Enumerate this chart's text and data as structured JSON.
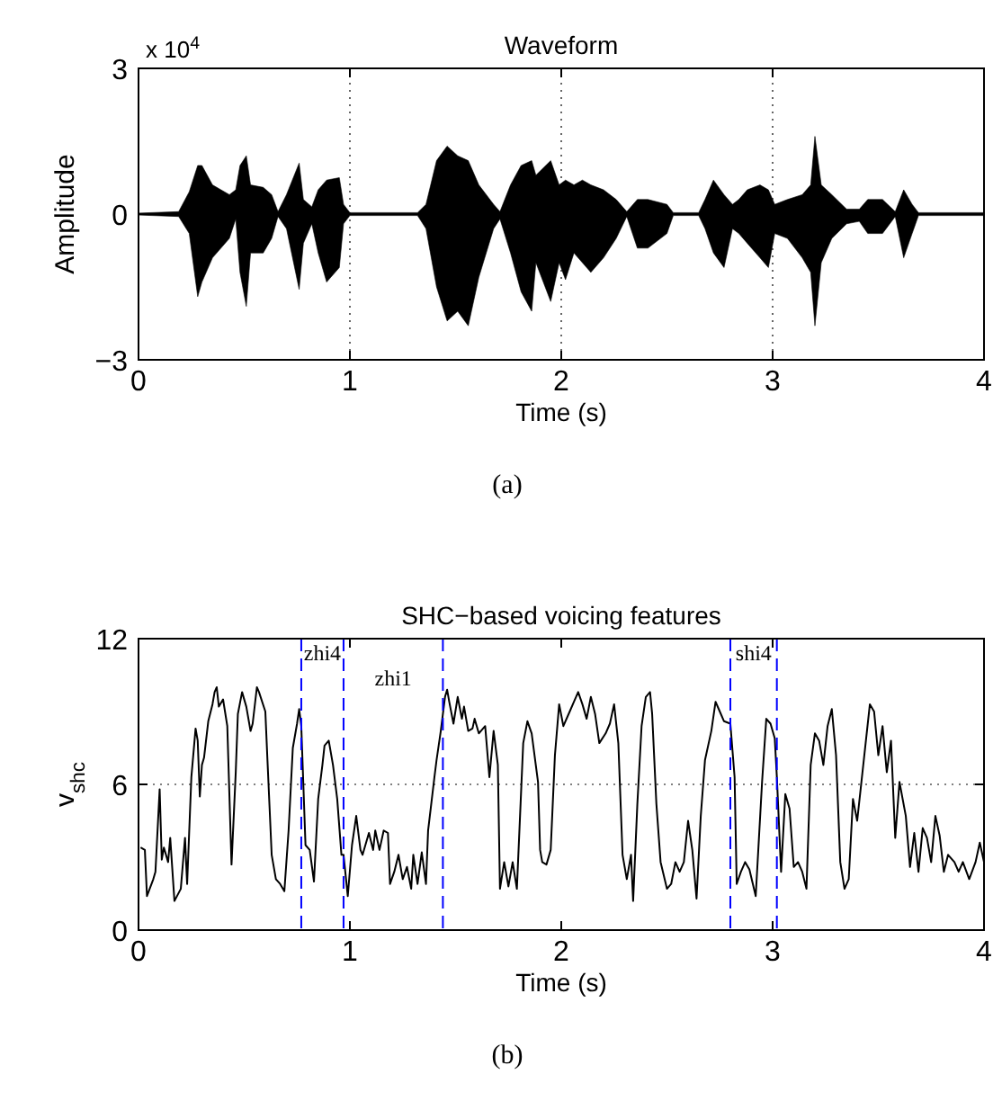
{
  "chart_data": [
    {
      "type": "area",
      "title": "Waveform",
      "xlabel": "Time (s)",
      "ylabel": "Amplitude",
      "xlim": [
        0,
        4
      ],
      "xticks": [
        0,
        1,
        2,
        3,
        4
      ],
      "ylim": [
        -3,
        3
      ],
      "yticks": [
        {
          "value": -3,
          "label": "−3"
        },
        0,
        3
      ],
      "grid": "x",
      "annotations": [
        "x 10$^{4}$",
        "(a)"
      ],
      "series": [
        {
          "color": "#000000",
          "x": [
            0,
            0.19,
            0.24,
            0.28,
            0.3,
            0.35,
            0.43,
            0.46,
            0.48,
            0.51,
            0.53,
            0.59,
            0.63,
            0.66,
            0.7,
            0.76,
            0.78,
            0.82,
            0.85,
            0.89,
            0.95,
            0.97,
            1.0,
            1.32,
            1.36,
            1.41,
            1.46,
            1.51,
            1.56,
            1.61,
            1.68,
            1.71,
            1.76,
            1.81,
            1.86,
            1.88,
            1.95,
            1.99,
            2.02,
            2.06,
            2.1,
            2.14,
            2.2,
            2.26,
            2.31,
            2.36,
            2.41,
            2.5,
            2.53,
            2.65,
            2.68,
            2.72,
            2.77,
            2.81,
            2.84,
            2.88,
            2.94,
            2.98,
            3.01,
            3.07,
            3.14,
            3.18,
            3.2,
            3.23,
            3.28,
            3.35,
            3.41,
            3.45,
            3.52,
            3.58,
            3.62,
            3.66,
            3.69,
            4.0
          ],
          "values": [
            0.02,
            0.05,
            0.46,
            1.0,
            1.0,
            0.6,
            0.4,
            0.5,
            1.0,
            1.2,
            0.6,
            0.55,
            0.4,
            0.05,
            0.4,
            1.05,
            0.3,
            0.15,
            0.5,
            0.7,
            0.75,
            0.2,
            0.03,
            0.03,
            0.2,
            1.1,
            1.4,
            1.2,
            1.1,
            0.6,
            0.2,
            0.05,
            0.6,
            1.0,
            1.1,
            0.8,
            1.1,
            0.6,
            0.7,
            0.6,
            0.7,
            0.6,
            0.5,
            0.3,
            0.05,
            0.3,
            0.3,
            0.2,
            0.03,
            0.03,
            0.3,
            0.7,
            0.4,
            0.2,
            0.3,
            0.5,
            0.6,
            0.5,
            0.2,
            0.3,
            0.4,
            0.6,
            1.6,
            0.6,
            0.4,
            0.1,
            0.1,
            0.3,
            0.3,
            0.05,
            0.5,
            0.2,
            0.03,
            0.03
          ]
        },
        {
          "color": "#000000",
          "x": [
            0,
            0.19,
            0.24,
            0.28,
            0.3,
            0.35,
            0.43,
            0.46,
            0.48,
            0.51,
            0.53,
            0.59,
            0.63,
            0.66,
            0.7,
            0.76,
            0.78,
            0.82,
            0.85,
            0.89,
            0.95,
            0.97,
            1.0,
            1.32,
            1.36,
            1.41,
            1.46,
            1.51,
            1.56,
            1.61,
            1.68,
            1.71,
            1.76,
            1.81,
            1.86,
            1.88,
            1.95,
            1.99,
            2.02,
            2.06,
            2.1,
            2.14,
            2.2,
            2.26,
            2.31,
            2.36,
            2.41,
            2.5,
            2.53,
            2.65,
            2.68,
            2.72,
            2.77,
            2.81,
            2.84,
            2.88,
            2.94,
            2.98,
            3.01,
            3.07,
            3.14,
            3.18,
            3.2,
            3.23,
            3.28,
            3.35,
            3.41,
            3.45,
            3.52,
            3.58,
            3.62,
            3.66,
            3.69,
            4.0
          ],
          "values": [
            -0.02,
            -0.05,
            -0.4,
            -1.7,
            -1.4,
            -0.9,
            -0.5,
            -0.1,
            -1.2,
            -1.9,
            -0.8,
            -0.8,
            -0.5,
            -0.05,
            -0.3,
            -1.55,
            -0.6,
            -0.2,
            -0.8,
            -1.4,
            -1.1,
            -0.2,
            -0.03,
            -0.03,
            -0.3,
            -1.5,
            -2.2,
            -2.0,
            -2.3,
            -1.3,
            -0.3,
            -0.1,
            -0.8,
            -1.6,
            -2.0,
            -1.0,
            -1.8,
            -1.0,
            -1.35,
            -0.8,
            -1.0,
            -1.2,
            -0.9,
            -0.5,
            -0.05,
            -0.7,
            -0.7,
            -0.4,
            -0.03,
            -0.03,
            -0.3,
            -0.8,
            -1.1,
            -0.3,
            -0.4,
            -0.6,
            -0.9,
            -1.1,
            -0.4,
            -0.5,
            -0.9,
            -1.2,
            -2.3,
            -1.0,
            -0.5,
            -0.2,
            -0.15,
            -0.4,
            -0.4,
            -0.05,
            -0.9,
            -0.4,
            -0.03,
            -0.03
          ]
        }
      ]
    },
    {
      "type": "line",
      "title": "SHC−based voicing features",
      "xlabel": "Time (s)",
      "ylabel": "v$_{shc}$",
      "xlim": [
        0,
        4
      ],
      "xticks": [
        0,
        1,
        2,
        3,
        4
      ],
      "ylim": [
        0,
        12
      ],
      "yticks": [
        0,
        6,
        12
      ],
      "grid": "y",
      "marker": "none",
      "line_style": "solid",
      "annotations": [
        "(b)"
      ],
      "ref_lines": [
        {
          "axis": "x",
          "value": 0.77,
          "label": "zhi4",
          "color": "#0000ff",
          "line_style": "dashed"
        },
        {
          "axis": "x",
          "value": 0.97,
          "label": "zhi1",
          "color": "#0000ff",
          "line_style": "dashed"
        },
        {
          "axis": "x",
          "value": 1.44,
          "color": "#0000ff",
          "line_style": "dashed"
        },
        {
          "axis": "x",
          "value": 2.8,
          "label": "shi4",
          "color": "#0000ff",
          "line_style": "dashed"
        },
        {
          "axis": "x",
          "value": 3.02,
          "color": "#0000ff",
          "line_style": "dashed"
        }
      ],
      "series": [
        {
          "color": "#000000",
          "x": [
            0.01,
            0.03,
            0.04,
            0.07,
            0.08,
            0.1,
            0.11,
            0.12,
            0.14,
            0.15,
            0.17,
            0.2,
            0.22,
            0.23,
            0.25,
            0.27,
            0.28,
            0.29,
            0.3,
            0.31,
            0.33,
            0.35,
            0.36,
            0.37,
            0.38,
            0.4,
            0.42,
            0.44,
            0.46,
            0.47,
            0.49,
            0.51,
            0.53,
            0.54,
            0.56,
            0.57,
            0.6,
            0.61,
            0.63,
            0.65,
            0.67,
            0.69,
            0.71,
            0.73,
            0.75,
            0.76,
            0.77,
            0.79,
            0.81,
            0.83,
            0.85,
            0.87,
            0.88,
            0.9,
            0.92,
            0.94,
            0.96,
            0.97,
            0.99,
            1.01,
            1.03,
            1.05,
            1.06,
            1.09,
            1.11,
            1.12,
            1.14,
            1.16,
            1.18,
            1.19,
            1.21,
            1.23,
            1.25,
            1.27,
            1.29,
            1.3,
            1.32,
            1.34,
            1.36,
            1.37,
            1.4,
            1.41,
            1.43,
            1.45,
            1.46,
            1.47,
            1.49,
            1.51,
            1.53,
            1.54,
            1.56,
            1.58,
            1.59,
            1.61,
            1.64,
            1.66,
            1.68,
            1.7,
            1.71,
            1.73,
            1.75,
            1.77,
            1.79,
            1.82,
            1.84,
            1.86,
            1.89,
            1.9,
            1.91,
            1.93,
            1.95,
            1.97,
            1.99,
            2.01,
            2.04,
            2.06,
            2.08,
            2.1,
            2.12,
            2.14,
            2.16,
            2.18,
            2.21,
            2.23,
            2.25,
            2.27,
            2.29,
            2.31,
            2.33,
            2.34,
            2.36,
            2.38,
            2.4,
            2.42,
            2.43,
            2.45,
            2.47,
            2.5,
            2.52,
            2.54,
            2.56,
            2.58,
            2.6,
            2.62,
            2.64,
            2.66,
            2.68,
            2.71,
            2.73,
            2.75,
            2.77,
            2.8,
            2.82,
            2.83,
            2.85,
            2.87,
            2.89,
            2.92,
            2.95,
            2.97,
            2.99,
            3.01,
            3.02,
            3.04,
            3.06,
            3.08,
            3.1,
            3.12,
            3.14,
            3.16,
            3.18,
            3.2,
            3.22,
            3.24,
            3.26,
            3.28,
            3.3,
            3.32,
            3.34,
            3.36,
            3.38,
            3.4,
            3.42,
            3.44,
            3.46,
            3.48,
            3.5,
            3.52,
            3.54,
            3.56,
            3.58,
            3.6,
            3.63,
            3.65,
            3.67,
            3.69,
            3.71,
            3.73,
            3.75,
            3.77,
            3.79,
            3.81,
            3.83,
            3.86,
            3.88,
            3.9,
            3.93,
            3.96,
            3.98,
            4.0
          ],
          "values": [
            3.4,
            3.3,
            1.4,
            2.1,
            2.4,
            5.8,
            2.9,
            3.4,
            2.8,
            3.8,
            1.2,
            1.7,
            3.8,
            1.9,
            6.3,
            8.3,
            7.8,
            5.5,
            6.8,
            7.1,
            8.6,
            9.3,
            9.8,
            10,
            9.2,
            9.5,
            8.4,
            2.7,
            6.5,
            8.9,
            9.8,
            9.2,
            8.2,
            8.5,
            10,
            9.8,
            9,
            7,
            3.1,
            2.1,
            1.9,
            1.6,
            4.1,
            7.5,
            8.5,
            9.1,
            8.4,
            3.5,
            3.3,
            2,
            5.4,
            6.8,
            7.6,
            7.8,
            6.8,
            5.4,
            3.1,
            3.1,
            1.4,
            3.5,
            4.7,
            3.3,
            3.1,
            4,
            3.3,
            4.1,
            3.3,
            4.1,
            4,
            1.9,
            2.4,
            3.1,
            2.1,
            2.6,
            1.7,
            3.1,
            1.9,
            3.2,
            1.9,
            4.1,
            6.3,
            7,
            8.2,
            9.6,
            9.9,
            9.4,
            8.5,
            9.6,
            8.7,
            9.2,
            8.2,
            8.3,
            8.7,
            8.1,
            8.4,
            6.3,
            8.2,
            6.8,
            1.7,
            2.8,
            1.8,
            2.8,
            1.7,
            7.7,
            8.6,
            8.1,
            6.1,
            3.3,
            2.8,
            2.7,
            3.3,
            7.2,
            9.3,
            8.4,
            9,
            9.4,
            9.8,
            9.3,
            8.7,
            9.6,
            8.9,
            7.7,
            8.1,
            8.5,
            9.3,
            7.7,
            3.1,
            2.1,
            3.1,
            1.2,
            5.2,
            8.4,
            9.6,
            9.8,
            8.9,
            5.2,
            2.8,
            1.7,
            1.9,
            2.8,
            2.4,
            2.8,
            4.5,
            3.3,
            1.3,
            4.7,
            7,
            8.2,
            9.4,
            9,
            8.6,
            8.5,
            6.3,
            1.9,
            2.4,
            2.8,
            2.5,
            1.4,
            6.1,
            8.7,
            8.5,
            7.9,
            6.3,
            2.4,
            5.6,
            5,
            2.6,
            2.8,
            2.4,
            1.7,
            6.8,
            8.1,
            7.8,
            6.8,
            8.4,
            9.1,
            7.2,
            2.8,
            1.7,
            2.1,
            5.4,
            4.5,
            6.1,
            7.7,
            9.3,
            9,
            7.2,
            8.4,
            6.5,
            7.8,
            3.8,
            6.1,
            4.7,
            2.6,
            4,
            2.4,
            4.2,
            3.8,
            2.8,
            4.7,
            3.9,
            2.4,
            3.1,
            2.8,
            2.4,
            2.8,
            2.1,
            2.8,
            3.6,
            2.8
          ]
        }
      ]
    }
  ]
}
